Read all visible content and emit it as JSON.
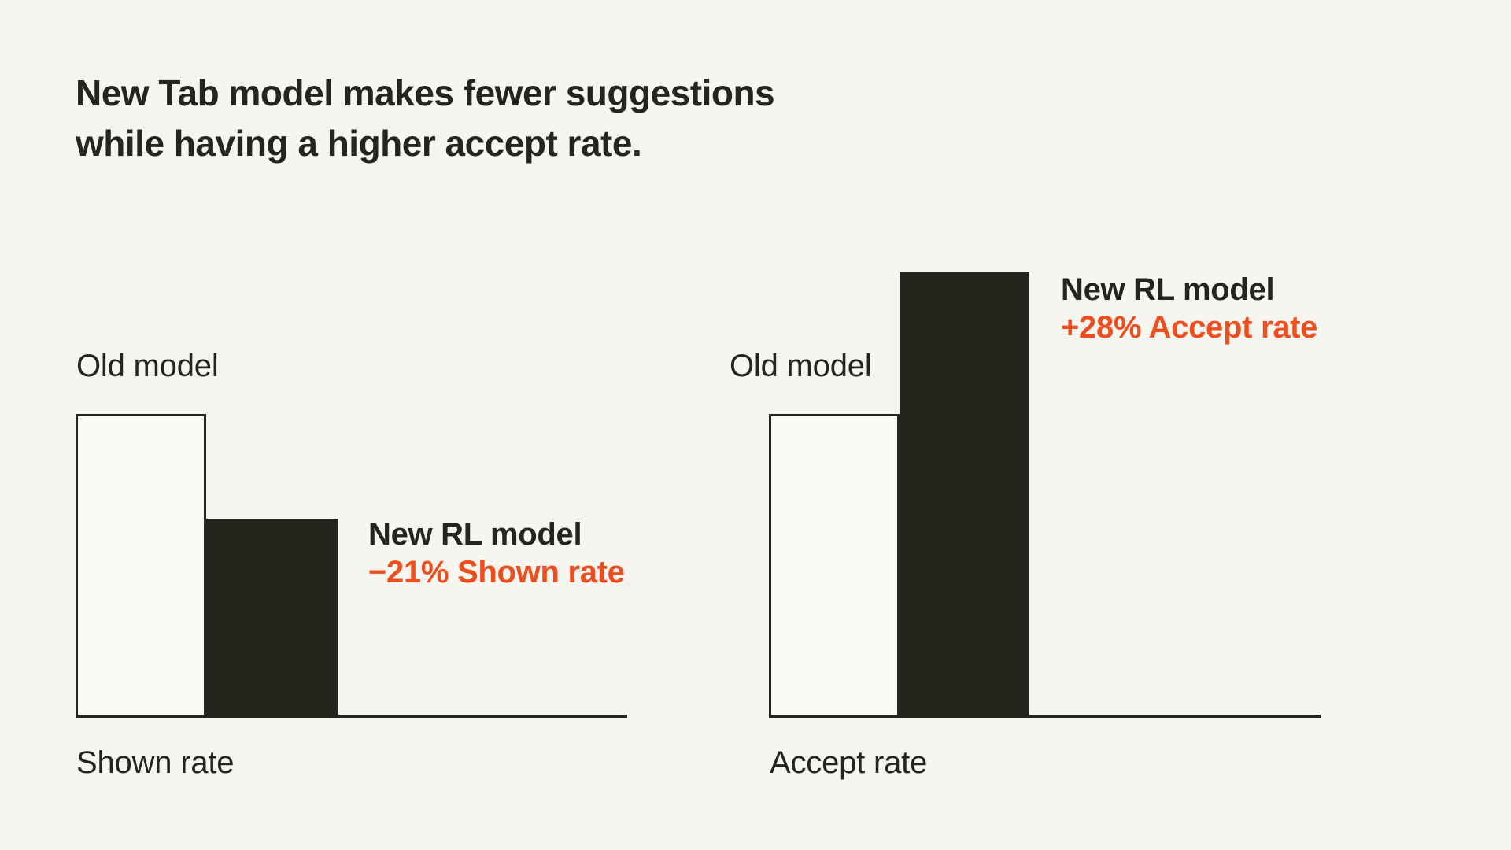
{
  "colors": {
    "background": "#f6f5f0",
    "ink": "#26251d",
    "accent": "#ee4d1d",
    "bar_fill": "#faf9f5"
  },
  "title": {
    "line1": "New Tab model makes fewer suggestions",
    "line2": "while having a higher accept rate."
  },
  "chart_data": [
    {
      "type": "bar",
      "xlabel": "Shown rate",
      "categories": [
        "Old model",
        "New RL model"
      ],
      "series": [
        {
          "name": "relative bar height (old model = 1.0)",
          "values": [
            1.0,
            0.655
          ]
        }
      ],
      "annotation": {
        "line1": "New RL model",
        "line2": "−21% Shown rate"
      },
      "bar_styles": [
        "outlined",
        "filled"
      ],
      "layout": "no y-axis, no gridlines, baseline only"
    },
    {
      "type": "bar",
      "xlabel": "Accept rate",
      "categories": [
        "Old model",
        "New RL model"
      ],
      "series": [
        {
          "name": "relative bar height (old model = 1.0)",
          "values": [
            1.0,
            1.469
          ]
        }
      ],
      "annotation": {
        "line1": "New RL model",
        "line2": "+28% Accept rate"
      },
      "bar_styles": [
        "outlined",
        "filled"
      ],
      "layout": "no y-axis, no gridlines, baseline only"
    }
  ]
}
